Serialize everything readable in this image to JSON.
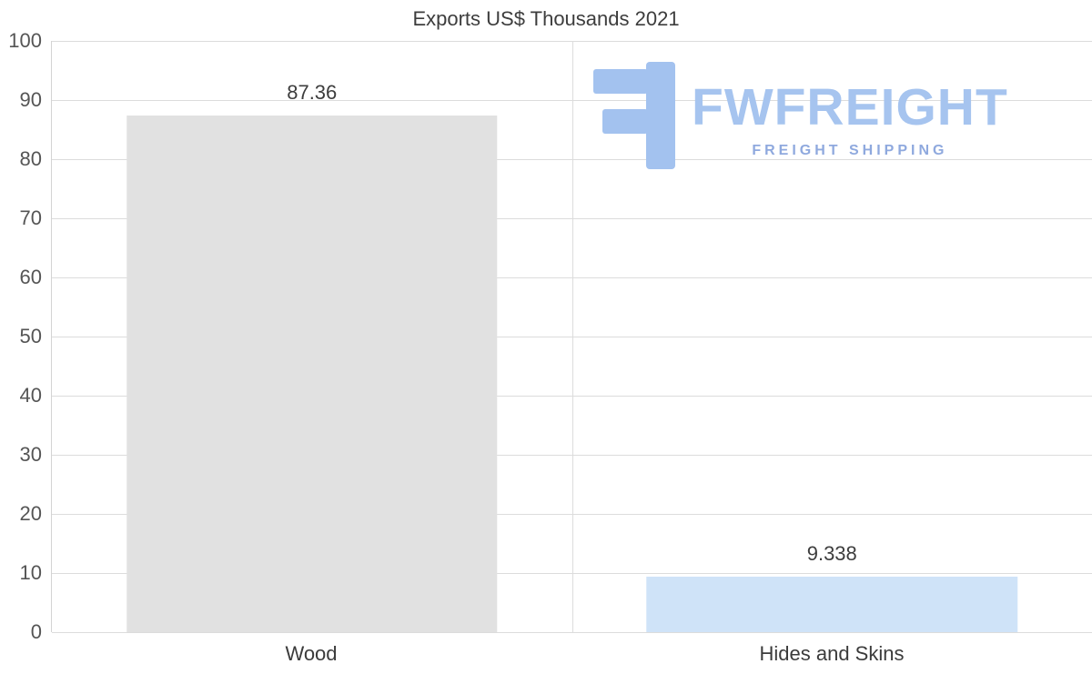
{
  "chart_data": {
    "type": "bar",
    "title": "Exports US$ Thousands 2021",
    "categories": [
      "Wood",
      "Hides and Skins"
    ],
    "values": [
      87.36,
      9.338
    ],
    "value_labels": [
      "87.36",
      "9.338"
    ],
    "bar_colors": [
      "#e1e1e1",
      "#cfe3f8"
    ],
    "ylim": [
      0,
      100
    ],
    "yticks": [
      100,
      90,
      80,
      70,
      60,
      50,
      40,
      30,
      20,
      10,
      0
    ],
    "grid": true,
    "legend": "none",
    "xlabel": "",
    "ylabel": ""
  },
  "watermark": {
    "brand": "FWFREIGHT",
    "tagline": "FREIGHT SHIPPING",
    "brand_color": "#a6c4ef",
    "tagline_color": "#8fa9de",
    "icon_color": "#a3c2ef",
    "icon": "fw-logo-icon"
  }
}
